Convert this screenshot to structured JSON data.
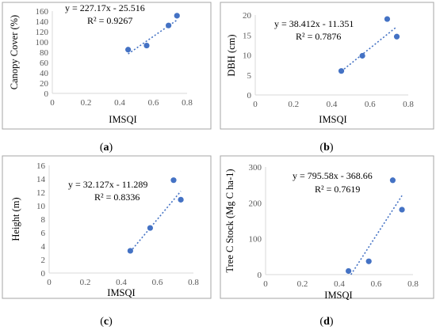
{
  "chart_data": [
    {
      "type": "scatter",
      "panel_label": "a",
      "xlabel": "IMSQI",
      "ylabel": "Canopy Cover (%)",
      "xlim": [
        0,
        0.8
      ],
      "ylim": [
        0,
        160
      ],
      "xticks": [
        "0",
        "0.2",
        "0.4",
        "0.6",
        "0.8"
      ],
      "yticks": [
        "0",
        "20",
        "40",
        "60",
        "80",
        "100",
        "120",
        "140",
        "160"
      ],
      "x": [
        0.45,
        0.56,
        0.69,
        0.74
      ],
      "y": [
        85,
        93,
        132,
        151
      ],
      "equation": "y = 227.17x - 25.516",
      "r2": "R² = 0.9267",
      "trend": {
        "slope": 227.17,
        "intercept": -25.516
      }
    },
    {
      "type": "scatter",
      "panel_label": "b",
      "xlabel": "IMSQI",
      "ylabel": "DBH (cm)",
      "xlim": [
        0,
        0.8
      ],
      "ylim": [
        0,
        20
      ],
      "xticks": [
        "0",
        "0.2",
        "0.4",
        "0.6",
        "0.8"
      ],
      "yticks": [
        "0",
        "5",
        "10",
        "15",
        "20"
      ],
      "x": [
        0.45,
        0.56,
        0.69,
        0.74
      ],
      "y": [
        6.0,
        9.8,
        19.0,
        14.6
      ],
      "equation": "y = 38.412x - 11.351",
      "r2": "R² = 0.7876",
      "trend": {
        "slope": 38.412,
        "intercept": -11.351
      }
    },
    {
      "type": "scatter",
      "panel_label": "c",
      "xlabel": "IMSQI",
      "ylabel": "Height (m)",
      "xlim": [
        0,
        0.8
      ],
      "ylim": [
        0,
        16
      ],
      "xticks": [
        "0",
        "0.2",
        "0.4",
        "0.6",
        "0.8"
      ],
      "yticks": [
        "0",
        "2",
        "4",
        "6",
        "8",
        "10",
        "12",
        "14",
        "16"
      ],
      "x": [
        0.45,
        0.56,
        0.69,
        0.73
      ],
      "y": [
        3.3,
        6.7,
        13.8,
        10.9
      ],
      "equation": "y = 32.127x - 11.289",
      "r2": "R² = 0.8336",
      "trend": {
        "slope": 32.127,
        "intercept": -11.289
      }
    },
    {
      "type": "scatter",
      "panel_label": "d",
      "xlabel": "IMSQI",
      "ylabel": "Tree C Stock (Mg C ha-1)",
      "xlim": [
        0,
        0.8
      ],
      "ylim": [
        0,
        300
      ],
      "xticks": [
        "0",
        "0.2",
        "0.4",
        "0.6",
        "0.8"
      ],
      "yticks": [
        "0",
        "100",
        "200",
        "300"
      ],
      "x": [
        0.45,
        0.56,
        0.69,
        0.74
      ],
      "y": [
        10,
        37,
        263,
        181
      ],
      "equation": "y = 795.58x - 368.66",
      "r2": "R² = 0.7619",
      "trend": {
        "slope": 795.58,
        "intercept": -368.66
      }
    }
  ],
  "colors": {
    "point": "#4472C4",
    "trend": "#4472C4",
    "frame": "#a6a6a6",
    "axis": "#d9d9d9"
  }
}
